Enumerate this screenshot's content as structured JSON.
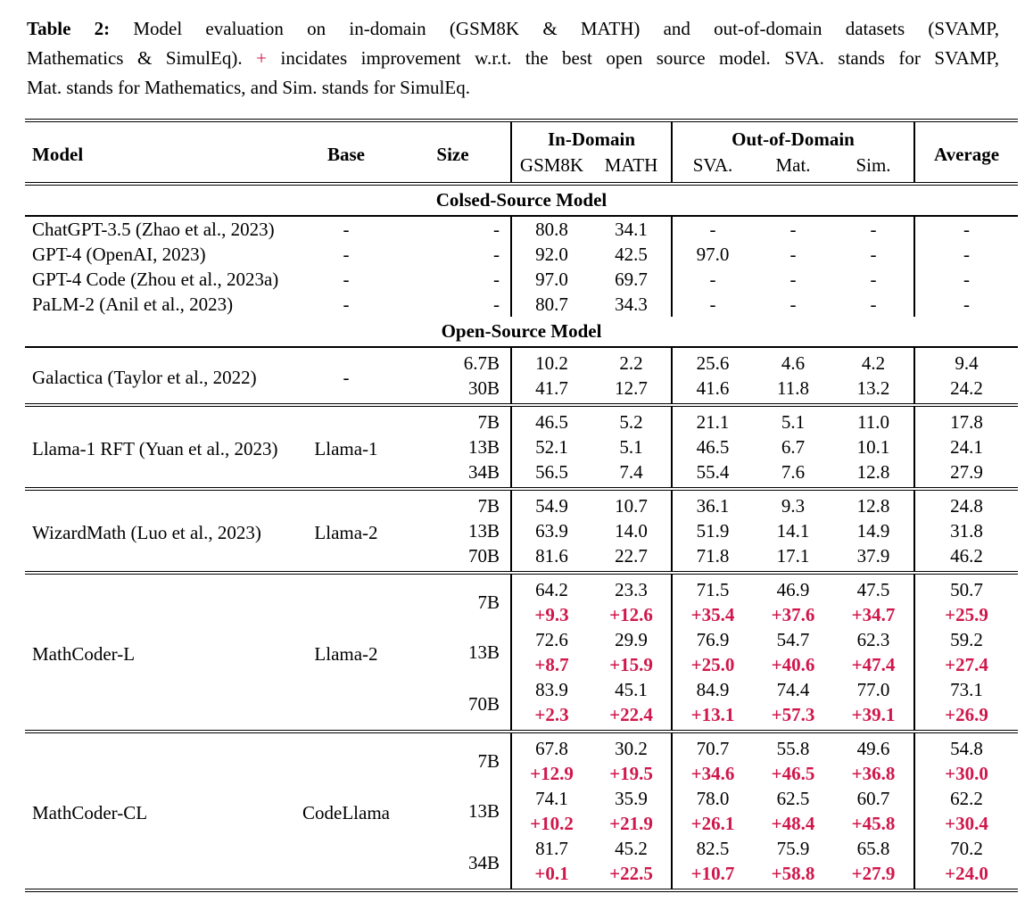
{
  "colors": {
    "accent_red": "#d0164a",
    "text": "#000000",
    "background": "#ffffff"
  },
  "caption": {
    "label": "Table 2:",
    "line1_rest": " Model evaluation on in-domain (GSM8K & MATH) and out-of-domain datasets (SVAMP,",
    "line2_pre": "Mathematics & SimulEq). ",
    "plus": "+",
    "line2_post": " incidates improvement w.r.t. the best open source model. SVA. stands for SVAMP,",
    "line3": "Mat. stands for Mathematics, and Sim. stands for SimulEq."
  },
  "table": {
    "header": {
      "model": "Model",
      "base": "Base",
      "size": "Size",
      "in_domain": "In-Domain",
      "out_of_domain": "Out-of-Domain",
      "average": "Average",
      "sub": [
        "GSM8K",
        "MATH",
        "SVA.",
        "Mat.",
        "Sim."
      ]
    },
    "sections": [
      {
        "title": "Colsed-Source Model",
        "rules_between_groups": false,
        "groups": [
          {
            "model": "ChatGPT-3.5 (Zhao et al., 2023)",
            "base": "-",
            "rows": [
              {
                "size": "-",
                "scores": [
                  "80.8",
                  "34.1",
                  "-",
                  "-",
                  "-",
                  "-"
                ]
              }
            ]
          },
          {
            "model": "GPT-4 (OpenAI, 2023)",
            "base": "-",
            "rows": [
              {
                "size": "-",
                "scores": [
                  "92.0",
                  "42.5",
                  "97.0",
                  "-",
                  "-",
                  "-"
                ]
              }
            ]
          },
          {
            "model": "GPT-4 Code (Zhou et al., 2023a)",
            "base": "-",
            "rows": [
              {
                "size": "-",
                "scores": [
                  "97.0",
                  "69.7",
                  "-",
                  "-",
                  "-",
                  "-"
                ]
              }
            ]
          },
          {
            "model": "PaLM-2 (Anil et al., 2023)",
            "base": "-",
            "rows": [
              {
                "size": "-",
                "scores": [
                  "80.7",
                  "34.3",
                  "-",
                  "-",
                  "-",
                  "-"
                ]
              }
            ]
          }
        ]
      },
      {
        "title": "Open-Source Model",
        "rules_between_groups": true,
        "groups": [
          {
            "model": "Galactica (Taylor et al., 2022)",
            "base": "-",
            "rows": [
              {
                "size": "6.7B",
                "scores": [
                  "10.2",
                  "2.2",
                  "25.6",
                  "4.6",
                  "4.2",
                  "9.4"
                ]
              },
              {
                "size": "30B",
                "scores": [
                  "41.7",
                  "12.7",
                  "41.6",
                  "11.8",
                  "13.2",
                  "24.2"
                ]
              }
            ]
          },
          {
            "model": "Llama-1 RFT (Yuan et al., 2023)",
            "base": "Llama-1",
            "rows": [
              {
                "size": "7B",
                "scores": [
                  "46.5",
                  "5.2",
                  "21.1",
                  "5.1",
                  "11.0",
                  "17.8"
                ]
              },
              {
                "size": "13B",
                "scores": [
                  "52.1",
                  "5.1",
                  "46.5",
                  "6.7",
                  "10.1",
                  "24.1"
                ]
              },
              {
                "size": "34B",
                "scores": [
                  "56.5",
                  "7.4",
                  "55.4",
                  "7.6",
                  "12.8",
                  "27.9"
                ]
              }
            ]
          },
          {
            "model": "WizardMath (Luo et al., 2023)",
            "base": "Llama-2",
            "rows": [
              {
                "size": "7B",
                "scores": [
                  "54.9",
                  "10.7",
                  "36.1",
                  "9.3",
                  "12.8",
                  "24.8"
                ]
              },
              {
                "size": "13B",
                "scores": [
                  "63.9",
                  "14.0",
                  "51.9",
                  "14.1",
                  "14.9",
                  "31.8"
                ]
              },
              {
                "size": "70B",
                "scores": [
                  "81.6",
                  "22.7",
                  "71.8",
                  "17.1",
                  "37.9",
                  "46.2"
                ]
              }
            ]
          },
          {
            "model": "MathCoder-L",
            "base": "Llama-2",
            "rows": [
              {
                "size": "7B",
                "scores": [
                  "64.2",
                  "23.3",
                  "71.5",
                  "46.9",
                  "47.5",
                  "50.7"
                ],
                "improvement": [
                  "+9.3",
                  "+12.6",
                  "+35.4",
                  "+37.6",
                  "+34.7",
                  "+25.9"
                ]
              },
              {
                "size": "13B",
                "scores": [
                  "72.6",
                  "29.9",
                  "76.9",
                  "54.7",
                  "62.3",
                  "59.2"
                ],
                "improvement": [
                  "+8.7",
                  "+15.9",
                  "+25.0",
                  "+40.6",
                  "+47.4",
                  "+27.4"
                ]
              },
              {
                "size": "70B",
                "scores": [
                  "83.9",
                  "45.1",
                  "84.9",
                  "74.4",
                  "77.0",
                  "73.1"
                ],
                "improvement": [
                  "+2.3",
                  "+22.4",
                  "+13.1",
                  "+57.3",
                  "+39.1",
                  "+26.9"
                ]
              }
            ]
          },
          {
            "model": "MathCoder-CL",
            "base": "CodeLlama",
            "rows": [
              {
                "size": "7B",
                "scores": [
                  "67.8",
                  "30.2",
                  "70.7",
                  "55.8",
                  "49.6",
                  "54.8"
                ],
                "improvement": [
                  "+12.9",
                  "+19.5",
                  "+34.6",
                  "+46.5",
                  "+36.8",
                  "+30.0"
                ]
              },
              {
                "size": "13B",
                "scores": [
                  "74.1",
                  "35.9",
                  "78.0",
                  "62.5",
                  "60.7",
                  "62.2"
                ],
                "improvement": [
                  "+10.2",
                  "+21.9",
                  "+26.1",
                  "+48.4",
                  "+45.8",
                  "+30.4"
                ]
              },
              {
                "size": "34B",
                "scores": [
                  "81.7",
                  "45.2",
                  "82.5",
                  "75.9",
                  "65.8",
                  "70.2"
                ],
                "improvement": [
                  "+0.1",
                  "+22.5",
                  "+10.7",
                  "+58.8",
                  "+27.9",
                  "+24.0"
                ]
              }
            ]
          }
        ]
      }
    ]
  }
}
